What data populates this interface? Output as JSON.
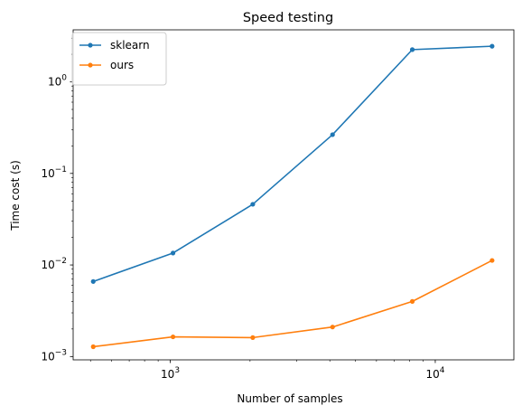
{
  "chart_data": {
    "type": "line",
    "title": "Speed testing",
    "xlabel": "Number of samples",
    "ylabel": "Time cost (s)",
    "xscale": "log",
    "yscale": "log",
    "xlim": [
      430,
      19800
    ],
    "ylim": [
      0.00092,
      3.7
    ],
    "x": [
      512,
      1024,
      2048,
      4096,
      8192,
      16384
    ],
    "x_ticks": [
      {
        "value": 1000,
        "base": "10",
        "exp": "3"
      },
      {
        "value": 10000,
        "base": "10",
        "exp": "4"
      }
    ],
    "y_ticks": [
      {
        "value": 0.001,
        "base": "10",
        "exp": "−3"
      },
      {
        "value": 0.01,
        "base": "10",
        "exp": "−2"
      },
      {
        "value": 0.1,
        "base": "10",
        "exp": "−1"
      },
      {
        "value": 1,
        "base": "10",
        "exp": "0"
      }
    ],
    "series": [
      {
        "name": "sklearn",
        "color": "#1f77b4",
        "values": [
          0.0066,
          0.0135,
          0.046,
          0.265,
          2.25,
          2.45
        ]
      },
      {
        "name": "ours",
        "color": "#ff7f0e",
        "values": [
          0.00128,
          0.00164,
          0.00161,
          0.0021,
          0.004,
          0.0112
        ]
      }
    ],
    "legend": "upper-left",
    "grid": false,
    "markers": "dot"
  }
}
